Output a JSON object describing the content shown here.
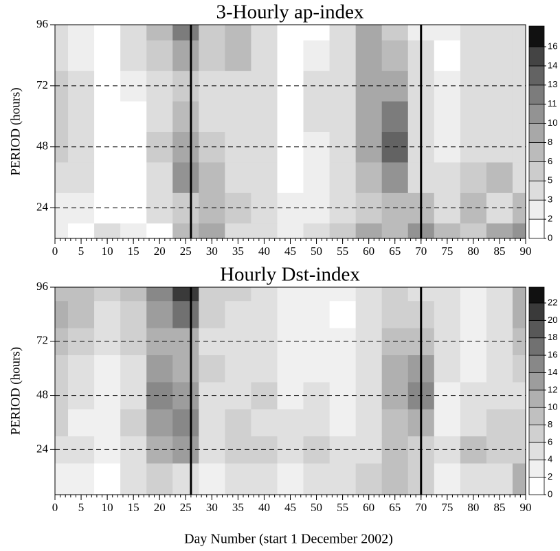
{
  "x_label": "Day Number (start 1 December 2002)",
  "chart_data": [
    {
      "type": "contour",
      "title": "3-Hourly ap-index",
      "y_label": "PERIOD  (hours)",
      "xlim": [
        0,
        90
      ],
      "xticks": [
        0,
        5,
        10,
        15,
        20,
        25,
        30,
        35,
        40,
        45,
        50,
        55,
        60,
        65,
        70,
        75,
        80,
        85,
        90
      ],
      "ylim": [
        12,
        96
      ],
      "yticks": [
        24,
        48,
        72,
        96
      ],
      "x": [
        0,
        5,
        10,
        15,
        20,
        25,
        30,
        35,
        40,
        45,
        50,
        55,
        60,
        65,
        70,
        75,
        80,
        85,
        90
      ],
      "y": [
        12,
        24,
        36,
        48,
        60,
        72,
        84,
        96
      ],
      "z": [
        [
          2,
          1,
          3,
          2,
          1,
          6,
          8,
          4,
          3,
          2,
          3,
          5,
          8,
          6,
          10,
          6,
          5,
          8,
          10
        ],
        [
          2,
          2,
          1,
          1,
          3,
          5,
          6,
          5,
          3,
          2,
          2,
          4,
          5,
          7,
          6,
          4,
          6,
          4,
          6
        ],
        [
          4,
          3,
          1,
          0,
          4,
          10,
          6,
          4,
          3,
          1,
          2,
          3,
          6,
          10,
          4,
          3,
          5,
          6,
          4
        ],
        [
          5,
          4,
          0,
          0,
          5,
          9,
          5,
          4,
          3,
          0,
          2,
          3,
          8,
          13,
          3,
          2,
          4,
          4,
          3
        ],
        [
          5,
          3,
          0,
          0,
          4,
          6,
          4,
          3,
          4,
          0,
          3,
          4,
          8,
          12,
          3,
          2,
          4,
          3,
          3
        ],
        [
          5,
          3,
          1,
          2,
          3,
          5,
          4,
          4,
          3,
          0,
          3,
          4,
          8,
          9,
          3,
          2,
          4,
          3,
          4
        ],
        [
          4,
          2,
          1,
          3,
          5,
          9,
          5,
          6,
          3,
          0,
          2,
          3,
          8,
          6,
          3,
          1,
          3,
          3,
          4
        ],
        [
          4,
          2,
          1,
          3,
          6,
          11,
          5,
          6,
          3,
          0,
          1,
          3,
          8,
          5,
          2,
          2,
          3,
          3,
          4
        ]
      ],
      "levels": [
        0,
        2,
        3,
        5,
        6,
        8,
        10,
        11,
        13,
        14,
        16
      ],
      "colors": [
        "#ffffff",
        "#eeeeee",
        "#dddddd",
        "#cccccc",
        "#bbbbbb",
        "#a8a8a8",
        "#939393",
        "#7c7c7c",
        "#636363",
        "#444444",
        "#111111"
      ],
      "vlines": [
        26,
        70
      ],
      "hlines": [
        24,
        48,
        72
      ]
    },
    {
      "type": "contour",
      "title": "Hourly Dst-index",
      "y_label": "PERIOD  (hours)",
      "xlim": [
        0,
        90
      ],
      "xticks": [
        0,
        5,
        10,
        15,
        20,
        25,
        30,
        35,
        40,
        45,
        50,
        55,
        60,
        65,
        70,
        75,
        80,
        85,
        90
      ],
      "ylim": [
        4,
        96
      ],
      "yticks": [
        24,
        48,
        72,
        96
      ],
      "x": [
        0,
        5,
        10,
        15,
        20,
        25,
        30,
        35,
        40,
        45,
        50,
        55,
        60,
        65,
        70,
        75,
        80,
        85,
        90
      ],
      "y": [
        12,
        24,
        36,
        48,
        60,
        72,
        84,
        96
      ],
      "z": [
        [
          2,
          3,
          1,
          4,
          6,
          4,
          3,
          5,
          4,
          3,
          5,
          5,
          6,
          9,
          6,
          3,
          4,
          5,
          10
        ],
        [
          4,
          4,
          3,
          5,
          10,
          12,
          4,
          6,
          7,
          5,
          6,
          5,
          5,
          8,
          6,
          4,
          8,
          6,
          7
        ],
        [
          6,
          3,
          2,
          6,
          12,
          14,
          4,
          6,
          5,
          4,
          5,
          3,
          4,
          8,
          10,
          3,
          5,
          6,
          7
        ],
        [
          7,
          4,
          3,
          5,
          14,
          12,
          5,
          5,
          6,
          3,
          4,
          3,
          5,
          10,
          14,
          3,
          4,
          4,
          5
        ],
        [
          6,
          4,
          3,
          5,
          12,
          10,
          6,
          4,
          4,
          3,
          3,
          3,
          5,
          10,
          12,
          4,
          3,
          4,
          6
        ],
        [
          8,
          6,
          4,
          6,
          10,
          10,
          5,
          5,
          5,
          3,
          3,
          2,
          5,
          8,
          8,
          4,
          3,
          4,
          8
        ],
        [
          10,
          8,
          5,
          7,
          12,
          16,
          6,
          5,
          5,
          3,
          2,
          1,
          4,
          6,
          6,
          4,
          3,
          4,
          10
        ],
        [
          8,
          8,
          6,
          8,
          14,
          20,
          7,
          6,
          5,
          3,
          3,
          2,
          4,
          6,
          5,
          4,
          3,
          4,
          10
        ]
      ],
      "levels": [
        0,
        2,
        4,
        6,
        8,
        10,
        12,
        14,
        16,
        18,
        20,
        22
      ],
      "colors": [
        "#ffffff",
        "#f0f0f0",
        "#e0e0e0",
        "#d0d0d0",
        "#c0c0c0",
        "#b0b0b0",
        "#9d9d9d",
        "#888888",
        "#717171",
        "#585858",
        "#3a3a3a",
        "#111111"
      ],
      "vlines": [
        26,
        70
      ],
      "hlines": [
        24,
        48,
        72
      ]
    }
  ]
}
